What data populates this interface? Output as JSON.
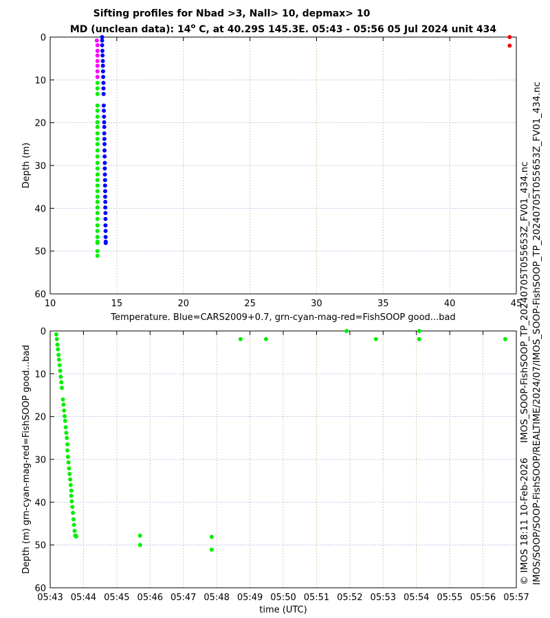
{
  "chart_data": [
    {
      "type": "scatter",
      "title": "Sifting profiles for Nbad >3, Nall> 10, depmax> 10",
      "subtitle_pre": "MD (unclean data): 14",
      "subtitle_sup": "o",
      "subtitle_post": " C, at 40.29S 145.3E. 05:43 - 05:56 05 Jul 2024 unit 434",
      "xlabel": "Temperature. Blue=CARS2009+0.7, grn-cyan-mag-red=FishSOOP good...bad",
      "ylabel": "Depth (m)",
      "xlim": [
        10,
        45
      ],
      "ylim": [
        0,
        60
      ],
      "xticks": [
        "10",
        "15",
        "20",
        "25",
        "30",
        "35",
        "40",
        "45"
      ],
      "yticks": [
        "0",
        "10",
        "20",
        "30",
        "40",
        "50",
        "60"
      ],
      "grid": true,
      "series": [
        {
          "name": "CARS2009+0.7",
          "color": "#0000ff",
          "temp": [
            13.9,
            13.9,
            13.9,
            13.92,
            13.93,
            13.95,
            13.96,
            13.97,
            13.98,
            14.0,
            14.0,
            14.01,
            14.02,
            14.03,
            14.04,
            14.05,
            14.06,
            14.06,
            14.07,
            14.08,
            14.08,
            14.09,
            14.1,
            14.1,
            14.11,
            14.12,
            14.12,
            14.13,
            14.13,
            14.14,
            14.14,
            14.15,
            14.15,
            14.15,
            14.16,
            14.16,
            14.17,
            14.17
          ],
          "depth": [
            0,
            0.8,
            1.9,
            3.2,
            4.3,
            5.6,
            6.7,
            8.0,
            9.3,
            10.7,
            12.0,
            13.3,
            16.0,
            17.2,
            18.6,
            19.9,
            21.0,
            22.5,
            23.8,
            25.0,
            26.5,
            27.9,
            29.4,
            30.7,
            32.1,
            33.4,
            34.7,
            36.0,
            37.3,
            38.5,
            39.8,
            41.1,
            42.5,
            44.0,
            45.3,
            46.7,
            47.8,
            48.1
          ]
        },
        {
          "name": "FishSOOP bad (magenta)",
          "color": "#ff00ff",
          "temp": [
            13.5,
            13.55,
            13.55,
            13.55,
            13.55,
            13.55,
            13.55,
            13.55
          ],
          "depth": [
            0.8,
            1.9,
            3.2,
            4.3,
            5.6,
            6.7,
            8.0,
            9.3
          ]
        },
        {
          "name": "FishSOOP good (green)",
          "color": "#00ee00",
          "temp": [
            13.55,
            13.55,
            13.55,
            13.55,
            13.55,
            13.55,
            13.55,
            13.55,
            13.55,
            13.55,
            13.55,
            13.55,
            13.55,
            13.55,
            13.55,
            13.55,
            13.55,
            13.55,
            13.55,
            13.55,
            13.55,
            13.55,
            13.55,
            13.55,
            13.55,
            13.55,
            13.55,
            13.55,
            13.55,
            13.55,
            13.55,
            13.55
          ],
          "depth": [
            10.7,
            12.0,
            13.3,
            16.0,
            17.2,
            18.6,
            19.9,
            21.0,
            22.5,
            23.8,
            25.0,
            26.5,
            27.9,
            29.4,
            30.7,
            32.1,
            33.4,
            34.7,
            36.0,
            37.3,
            38.5,
            39.8,
            41.1,
            42.5,
            44.0,
            45.3,
            46.7,
            47.8,
            48.1,
            50.0,
            51.1,
            47.8
          ]
        },
        {
          "name": "FishSOOP worst (red)",
          "color": "#ff0000",
          "temp": [
            44.5,
            44.5
          ],
          "depth": [
            0,
            2.0
          ]
        }
      ]
    },
    {
      "type": "scatter",
      "xlabel": "time (UTC)",
      "ylabel": "Depth (m) grn-cyan-mag-red=FishSOOP good...bad",
      "xlim_minutes_after_0543": [
        0,
        14
      ],
      "ylim": [
        0,
        60
      ],
      "xticks": [
        "05:43",
        "05:44",
        "05:45",
        "05:46",
        "05:47",
        "05:48",
        "05:49",
        "05:50",
        "05:51",
        "05:52",
        "05:53",
        "05:54",
        "05:55",
        "05:56",
        "05:57"
      ],
      "yticks": [
        "0",
        "10",
        "20",
        "30",
        "40",
        "50",
        "60"
      ],
      "grid": true,
      "series": [
        {
          "name": "FishSOOP good",
          "color": "#00ee00",
          "time_s_after_0543": [
            11,
            12,
            13,
            14,
            15,
            16,
            17,
            18,
            19,
            20,
            21,
            23,
            24,
            25,
            26,
            27,
            28,
            29,
            30,
            31,
            31,
            32,
            33,
            34,
            35,
            36,
            37,
            38,
            38,
            39,
            40,
            41,
            42,
            43,
            44,
            45,
            46,
            47,
            162,
            162,
            291,
            291,
            343,
            389,
            534,
            587,
            665,
            665,
            820
          ],
          "depth": [
            0.8,
            1.9,
            3.2,
            4.3,
            5.6,
            6.7,
            8.0,
            9.3,
            10.7,
            12.0,
            13.3,
            16.0,
            17.2,
            18.6,
            19.9,
            21.0,
            22.5,
            23.8,
            25.0,
            26.5,
            27.9,
            29.4,
            30.7,
            32.1,
            33.4,
            34.7,
            36.0,
            37.3,
            38.5,
            39.8,
            41.1,
            42.5,
            44.0,
            45.3,
            46.7,
            47.8,
            47.8,
            48.0,
            47.8,
            50.0,
            48.1,
            51.1,
            1.9,
            1.9,
            0,
            1.9,
            0,
            1.9,
            1.9
          ]
        }
      ]
    }
  ],
  "side_text": {
    "file": "IMOS_SOOP-FishSOOP_TP_20240705T055653Z_FV01_434.nc",
    "copyright": "© IMOS 18:11 10-Feb-2026",
    "path": "IMOS/SOOP/SOOP-FishSOOP/REALTIME/2024/07/IMOS_SOOP-FishSOOP_TP_20240705T055653Z_FV01_434.nc"
  }
}
